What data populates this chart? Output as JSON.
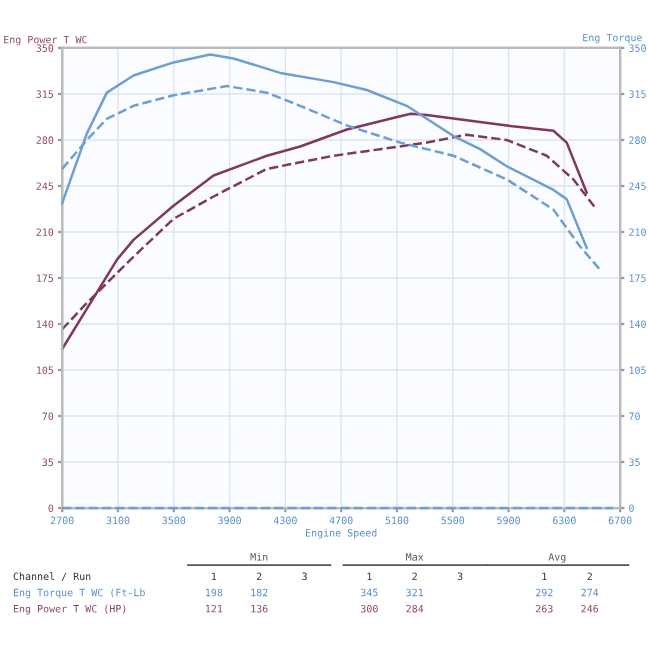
{
  "chart_data": {
    "type": "line",
    "ylabel": "Eng Power T WC",
    "y2label": "Eng Torque",
    "xlabel": "Engine Speed",
    "xlim": [
      2700,
      6700
    ],
    "xticks": [
      2700,
      3100,
      3500,
      3900,
      4300,
      4700,
      5100,
      5500,
      5900,
      6300,
      6700
    ],
    "ylim": [
      0,
      350
    ],
    "yticks": [
      0,
      35,
      70,
      105,
      140,
      175,
      210,
      245,
      280,
      315,
      350
    ],
    "y2lim": [
      0,
      350
    ],
    "y2ticks": [
      0,
      35,
      70,
      105,
      140,
      175,
      210,
      245,
      280,
      315,
      350
    ],
    "grid": true,
    "marker": "none",
    "series": [
      {
        "color": "#6f9fd2",
        "axis": "y2",
        "line_style": "solid",
        "x": [
          2700,
          2877,
          3020,
          3211,
          3498,
          3761,
          3928,
          4263,
          4645,
          4884,
          5170,
          5505,
          5696,
          5887,
          6222,
          6317,
          6460
        ],
        "values": [
          232,
          285,
          316,
          329,
          339,
          345,
          342,
          331,
          324,
          318,
          306,
          283,
          273,
          260,
          242,
          235,
          198
        ]
      },
      {
        "color": "#6f9fd2",
        "axis": "y2",
        "line_style": "dashed",
        "x": [
          2700,
          2877,
          3020,
          3211,
          3498,
          3880,
          4167,
          4406,
          4741,
          5123,
          5505,
          5887,
          6222,
          6413,
          6550
        ],
        "values": [
          258,
          280,
          296,
          306,
          314,
          321,
          316,
          306,
          291,
          278,
          268,
          250,
          227,
          199,
          182
        ]
      },
      {
        "color": "#7d3a5e",
        "axis": "y",
        "line_style": "solid",
        "x": [
          2700,
          3093,
          3211,
          3498,
          3785,
          4167,
          4406,
          4741,
          5123,
          5200,
          5313,
          5600,
          5887,
          6222,
          6317,
          6460
        ],
        "values": [
          121,
          189,
          204,
          230,
          253,
          268,
          275,
          288,
          298,
          300,
          299,
          295,
          291,
          287,
          278,
          240
        ]
      },
      {
        "color": "#7d3a5e",
        "axis": "y",
        "line_style": "dashed",
        "x": [
          2700,
          2877,
          3190,
          3498,
          3785,
          4167,
          4645,
          4980,
          5313,
          5600,
          5887,
          6174,
          6365,
          6532
        ],
        "values": [
          136,
          156,
          189,
          220,
          237,
          258,
          268,
          273,
          278,
          284,
          280,
          268,
          250,
          227
        ]
      },
      {
        "color": "#6f9fd2",
        "axis": "y2",
        "line_style": "dashed",
        "x": [
          2700,
          6650
        ],
        "values": [
          0,
          0
        ]
      }
    ],
    "annotations": [
      "Min",
      "Max",
      "Avg",
      "Channel / Run",
      "1",
      "2",
      "3",
      "1",
      "2",
      "3",
      "1",
      "2",
      "Eng Torque T WC (Ft-Lb",
      "198",
      "182",
      "345",
      "321",
      "292",
      "274",
      "Eng Power T WC (HP)",
      "121",
      "136",
      "300",
      "284",
      "263",
      "246"
    ]
  }
}
